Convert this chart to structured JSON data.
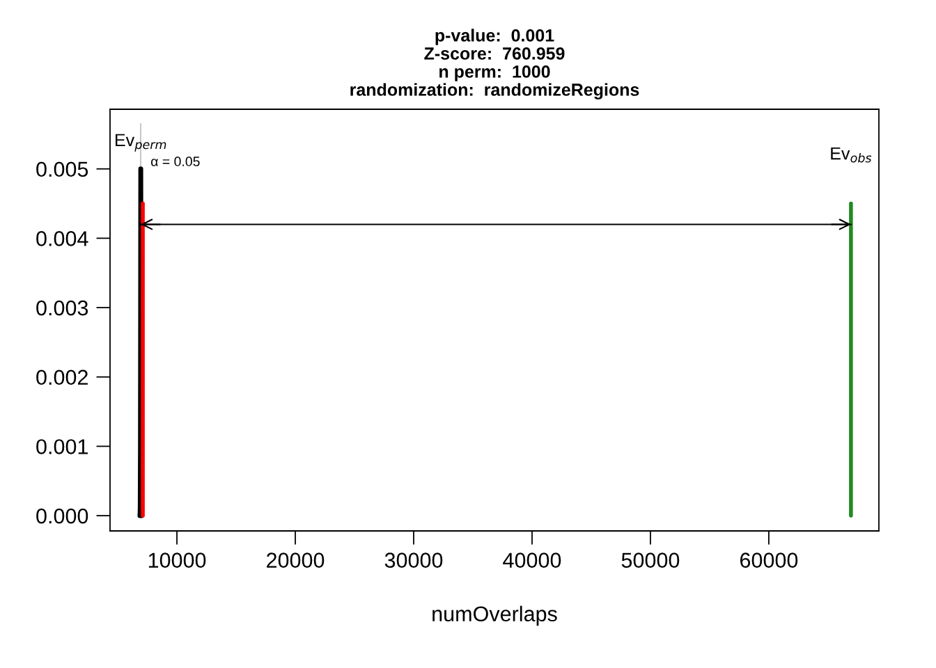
{
  "chart_data": {
    "type": "line",
    "title": "p-value:  0.001\nZ-score:  760.959\nn perm:  1000\nrandomization:  randomizeRegions",
    "xlabel": "numOverlaps",
    "xlim": [
      4350,
      69300
    ],
    "ylim": [
      -0.00022,
      0.00586
    ],
    "xticks": [
      10000,
      20000,
      30000,
      40000,
      50000,
      60000
    ],
    "yticks": [
      {
        "value": 0,
        "label": "0.000"
      },
      {
        "value": 0.001,
        "label": "0.001"
      },
      {
        "value": 0.002,
        "label": "0.002"
      },
      {
        "value": 0.003,
        "label": "0.003"
      },
      {
        "value": 0.004,
        "label": "0.004"
      },
      {
        "value": 0.005,
        "label": "0.005"
      }
    ],
    "grid": false,
    "legend": false,
    "series": [
      {
        "type": "histogram",
        "color": "#bebebe",
        "bins": [
          6930,
          6950
        ],
        "values": [
          0.00565
        ]
      },
      {
        "color": "#000000",
        "x": [
          6880,
          6900,
          6920,
          6935,
          6945,
          6960,
          6980,
          7000,
          7020
        ],
        "values": [
          0,
          0.0001,
          0.001,
          0.003,
          0.005,
          0.003,
          0.001,
          0.0001,
          0
        ]
      },
      {
        "color": "#ff0000",
        "x": [
          7120,
          7120
        ],
        "values": [
          0,
          0.0045
        ]
      },
      {
        "color": "#228b22",
        "x": [
          66940,
          66940
        ],
        "values": [
          0,
          0.0045
        ]
      },
      {
        "color": "#000000",
        "x": [
          6940,
          66940
        ],
        "values": [
          0.0042,
          0.0042
        ]
      }
    ],
    "annotations": [
      "Ev$_{perm}$",
      "α = 0.05",
      "Ev$_{obs}$"
    ]
  }
}
